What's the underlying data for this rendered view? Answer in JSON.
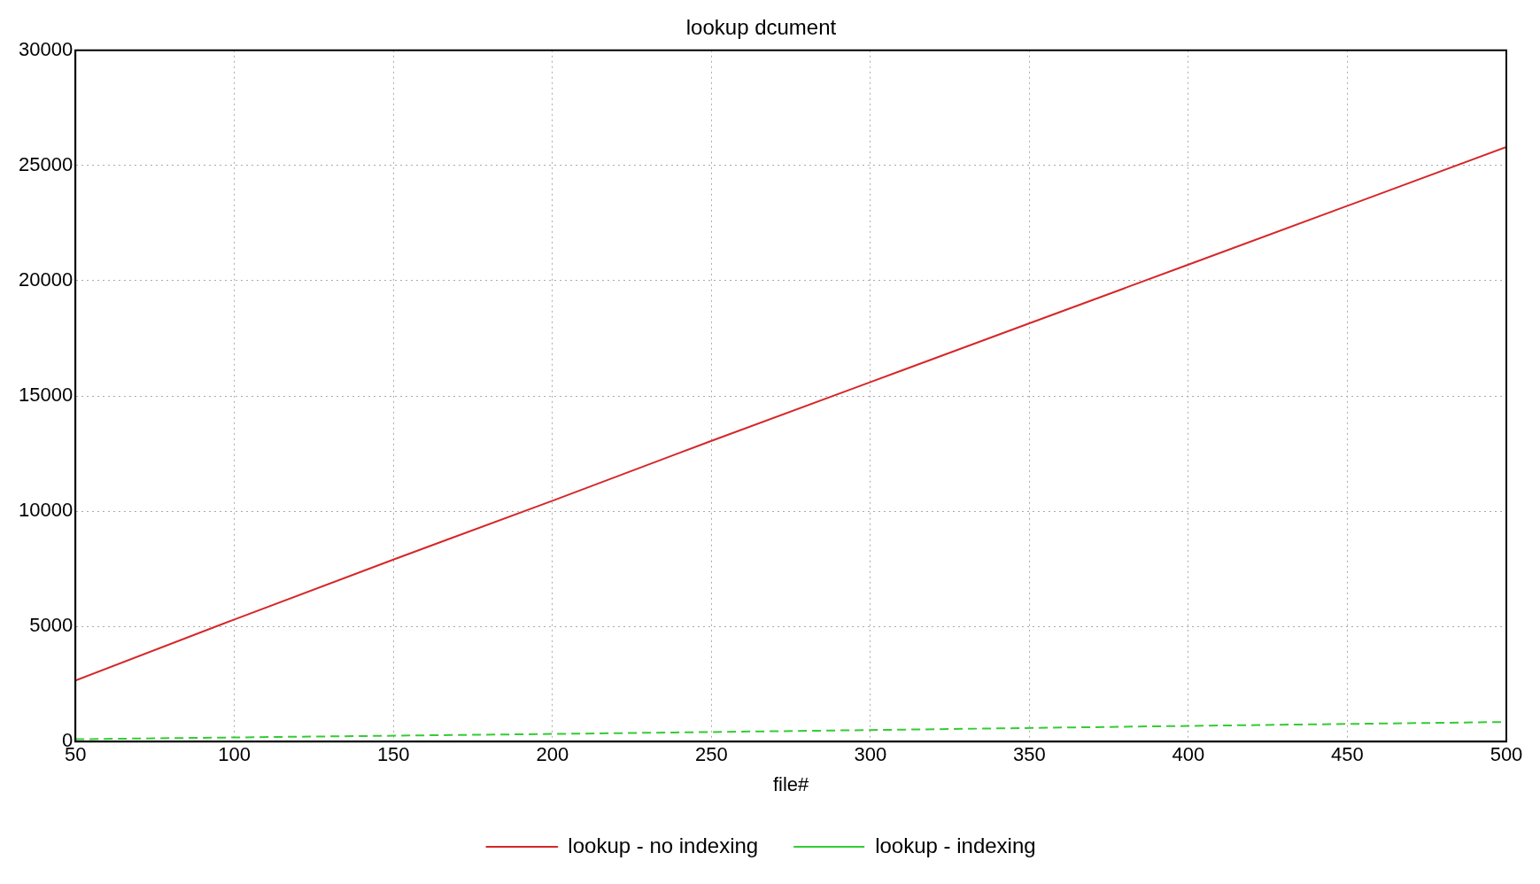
{
  "chart_data": {
    "type": "line",
    "title": "lookup dcument",
    "xlabel": "file#",
    "xlim": [
      50,
      500
    ],
    "xticks": [
      50,
      100,
      150,
      200,
      250,
      300,
      350,
      400,
      450,
      500
    ],
    "ylim": [
      0,
      30000
    ],
    "yticks": [
      0,
      5000,
      10000,
      15000,
      20000,
      25000,
      30000
    ],
    "grid": true,
    "legend": "bottom",
    "marker": "none",
    "series": [
      {
        "name": "lookup - no indexing",
        "color": "#d62728",
        "line_style": "solid",
        "x": [
          50,
          100,
          150,
          200,
          250,
          300,
          350,
          400,
          450,
          500
        ],
        "values": [
          2650,
          5300,
          7900,
          10450,
          13050,
          15600,
          18150,
          20700,
          23250,
          25800
        ]
      },
      {
        "name": "lookup - indexing",
        "color": "#33cc33",
        "line_style": "dashed",
        "x": [
          50,
          100,
          200,
          300,
          400,
          500
        ],
        "values": [
          100,
          180,
          330,
          500,
          680,
          850
        ]
      }
    ]
  }
}
